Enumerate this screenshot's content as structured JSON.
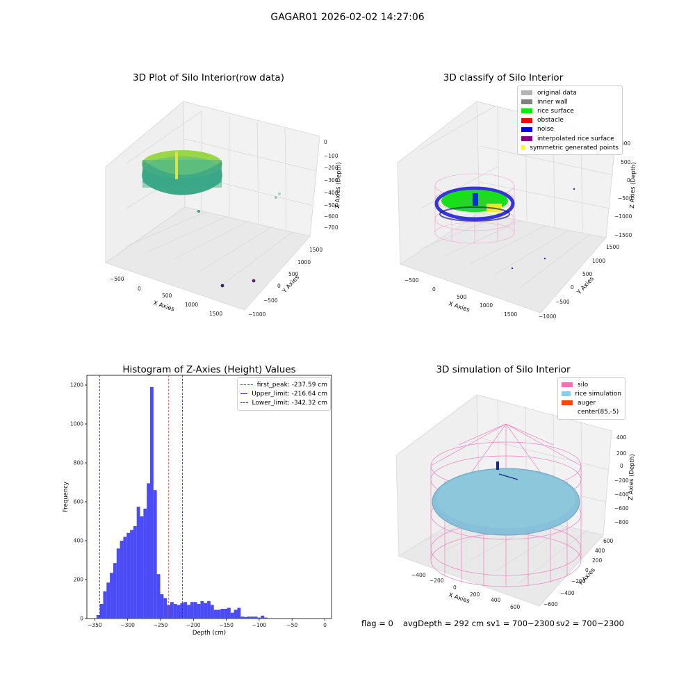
{
  "suptitle": "GAGAR01 2026-02-02 14:27:06",
  "colors": {
    "histogram_bar": "#4a4af7",
    "first_peak": "#e8322a",
    "limits": "#1a1ad0",
    "silo_mesh": "#f27fbf",
    "rice_surface": "#7fc3db",
    "auger": "#1b2a7a",
    "pane": "#f2f2f2",
    "grid": "#d8d8d8"
  },
  "plot1": {
    "title": "3D Plot of Silo Interior(row data)",
    "xlabel": "X Axies",
    "ylabel": "Y Axies",
    "zlabel": "Z Axies (Depth)",
    "xticks": [
      "−500",
      "0",
      "500",
      "1000",
      "1500"
    ],
    "yticks": [
      "−1000",
      "−500",
      "0",
      "500",
      "1000",
      "1500"
    ],
    "zticks": [
      "0",
      "−100",
      "−200",
      "−300",
      "−400",
      "−500",
      "−600",
      "−700"
    ],
    "colormap": "viridis"
  },
  "plot2": {
    "title": "3D classify of Silo Interior",
    "xlabel": "X Axies",
    "ylabel": "Y Axies",
    "zlabel": "Z Axies (Depth)",
    "xticks": [
      "−500",
      "0",
      "500",
      "1000",
      "1500"
    ],
    "yticks": [
      "−1000",
      "−500",
      "0",
      "500",
      "1000",
      "1500"
    ],
    "zticks": [
      "500",
      "0",
      "−500",
      "−1000",
      "−1500"
    ],
    "legend": [
      {
        "label": "original data",
        "color": "#b3b3b3"
      },
      {
        "label": "inner wall",
        "color": "#808080"
      },
      {
        "label": "rice surface",
        "color": "#00ee00"
      },
      {
        "label": "obstacle",
        "color": "#ff0000"
      },
      {
        "label": "noise",
        "color": "#0000ee"
      },
      {
        "label": "interpolated rice surface",
        "color": "#800080"
      },
      {
        "label": "symmetric generated points",
        "color": "#ffff00"
      }
    ]
  },
  "plot3": {
    "title": "Histogram of Z-Axies (Height) Values",
    "legend": [
      {
        "label": "first_peak: -237.59 cm",
        "color": "#e8322a"
      },
      {
        "label": "Upper_limit: -216.64 cm",
        "color": "#1a1ad0"
      },
      {
        "label": "Lower_limit: -342.32 cm",
        "color": "#1a1ad0"
      }
    ]
  },
  "plot4": {
    "title": "3D simulation of Silo Interior",
    "xlabel": "X Axies",
    "ylabel": "Y Axies",
    "zlabel": "Z Axies (Depth)",
    "xticks": [
      "−400",
      "−200",
      "0",
      "200",
      "400",
      "600"
    ],
    "yticks": [
      "−600",
      "−400",
      "−200",
      "0",
      "200",
      "400",
      "600"
    ],
    "zticks": [
      "400",
      "200",
      "0",
      "−200",
      "−400",
      "−600",
      "−800"
    ],
    "legend": [
      {
        "label": "silo",
        "color": "#f46fb0"
      },
      {
        "label": "rice simulation",
        "color": "#87ceeb"
      },
      {
        "label": "auger",
        "color": "#ff4500"
      },
      {
        "label": "center(85,-5)",
        "color": "#ffffff"
      }
    ]
  },
  "status": {
    "flag": "flag = 0",
    "avg_depth": "avgDepth = 292 cm",
    "sv1": "sv1 = 700~2300",
    "sv2": "sv2 = 700~2300"
  },
  "chart_data": [
    {
      "type": "scatter",
      "title": "3D Plot of Silo Interior(row data)",
      "xlabel": "X Axies",
      "ylabel": "Y Axies",
      "zlabel": "Z Axies (Depth)",
      "xlim": [
        -600,
        1800
      ],
      "ylim": [
        -1100,
        1600
      ],
      "zlim": [
        -780,
        30
      ],
      "series": [
        {
          "values_description_only": false,
          "x": [
            -350,
            0,
            350,
            0,
            150,
            1650,
            1500,
            1000,
            1250
          ],
          "y": [
            0,
            350,
            0,
            -350,
            60,
            1500,
            1450,
            -900,
            -950
          ],
          "z": [
            -230,
            -230,
            -260,
            -250,
            -120,
            -400,
            -420,
            -620,
            -660
          ]
        }
      ]
    },
    {
      "type": "scatter",
      "title": "3D classify of Silo Interior",
      "xlabel": "X Axies",
      "ylabel": "Y Axies",
      "zlabel": "Z Axies (Depth)",
      "xlim": [
        -600,
        1800
      ],
      "ylim": [
        -1100,
        1600
      ],
      "zlim": [
        -1500,
        800
      ],
      "series": [
        {
          "name": "inner wall",
          "x": [],
          "y": [],
          "z": []
        },
        {
          "name": "rice surface",
          "x": [],
          "y": [],
          "z": []
        },
        {
          "name": "noise",
          "x": [
            1500,
            1300,
            1000
          ],
          "y": [
            1400,
            -900,
            -950
          ],
          "z": [
            -300,
            -1400,
            -1450
          ]
        }
      ]
    },
    {
      "type": "bar",
      "title": "Histogram of Z-Axies (Height) Values",
      "xlabel": "Depth (cm)",
      "ylabel": "Frequency",
      "xlim": [
        -362,
        10
      ],
      "ylim": [
        0,
        1250
      ],
      "xticks": [
        -350,
        -300,
        -250,
        -200,
        -150,
        -100,
        -50,
        0
      ],
      "yticks": [
        0,
        200,
        400,
        600,
        800,
        1000,
        1200
      ],
      "bin_width": 5.1,
      "bin_start": -347.4,
      "values": [
        18,
        75,
        140,
        185,
        235,
        285,
        360,
        400,
        420,
        440,
        455,
        475,
        575,
        525,
        565,
        695,
        1190,
        660,
        228,
        125,
        105,
        70,
        85,
        75,
        70,
        80,
        85,
        70,
        85,
        85,
        75,
        90,
        80,
        90,
        70,
        45,
        45,
        50,
        50,
        55,
        30,
        45,
        55,
        10,
        8,
        10,
        10,
        10,
        5,
        15,
        5
      ],
      "vlines": [
        {
          "label": "first_peak: -237.59 cm",
          "x": -237.59
        },
        {
          "label": "Upper_limit: -216.64 cm",
          "x": -216.64
        },
        {
          "label": "Lower_limit: -342.32 cm",
          "x": -342.32
        }
      ],
      "legend_position": "top-right"
    },
    {
      "type": "surface",
      "title": "3D simulation of Silo Interior",
      "xlabel": "X Axies",
      "ylabel": "Y Axies",
      "zlabel": "Z Axies (Depth)",
      "xlim": [
        -500,
        700
      ],
      "ylim": [
        -700,
        700
      ],
      "zlim": [
        -900,
        450
      ],
      "center": [
        85,
        -5
      ]
    }
  ]
}
